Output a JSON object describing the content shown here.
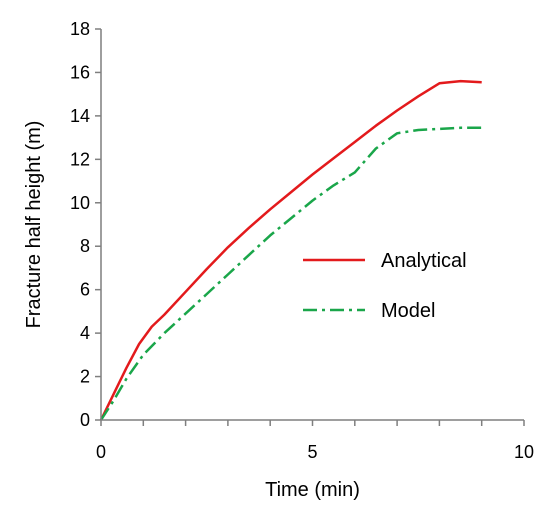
{
  "chart_data": {
    "type": "line",
    "title": "",
    "xlabel": "Time (min)",
    "ylabel": "Fracture half height (m)",
    "xlim": [
      0,
      10
    ],
    "ylim": [
      0,
      18
    ],
    "xticks": [
      0,
      5,
      10
    ],
    "yticks": [
      0,
      2,
      4,
      6,
      8,
      10,
      12,
      14,
      16,
      18
    ],
    "grid": false,
    "legend_position": "right",
    "series": [
      {
        "name": "Analytical",
        "color": "#e31a1c",
        "style": "solid",
        "x": [
          0,
          0.3,
          0.6,
          0.9,
          1.2,
          1.5,
          2,
          2.5,
          3,
          3.5,
          4,
          4.5,
          5,
          5.5,
          6,
          6.5,
          7,
          7.5,
          8,
          8.5,
          9
        ],
        "y": [
          0,
          1.2,
          2.4,
          3.5,
          4.3,
          4.85,
          5.9,
          6.95,
          7.95,
          8.85,
          9.7,
          10.5,
          11.3,
          12.05,
          12.8,
          13.55,
          14.25,
          14.9,
          15.5,
          15.6,
          15.55
        ]
      },
      {
        "name": "Model",
        "color": "#1aa64a",
        "style": "dashdot",
        "x": [
          0,
          0.3,
          0.6,
          1,
          1.5,
          2,
          2.5,
          3,
          3.5,
          4,
          4.5,
          5,
          5.5,
          6,
          6.5,
          7,
          7.5,
          8,
          8.5,
          9
        ],
        "y": [
          0,
          0.9,
          1.9,
          3.0,
          4.0,
          4.9,
          5.8,
          6.7,
          7.6,
          8.5,
          9.3,
          10.1,
          10.8,
          11.4,
          12.5,
          13.2,
          13.35,
          13.4,
          13.45,
          13.45
        ]
      }
    ]
  }
}
